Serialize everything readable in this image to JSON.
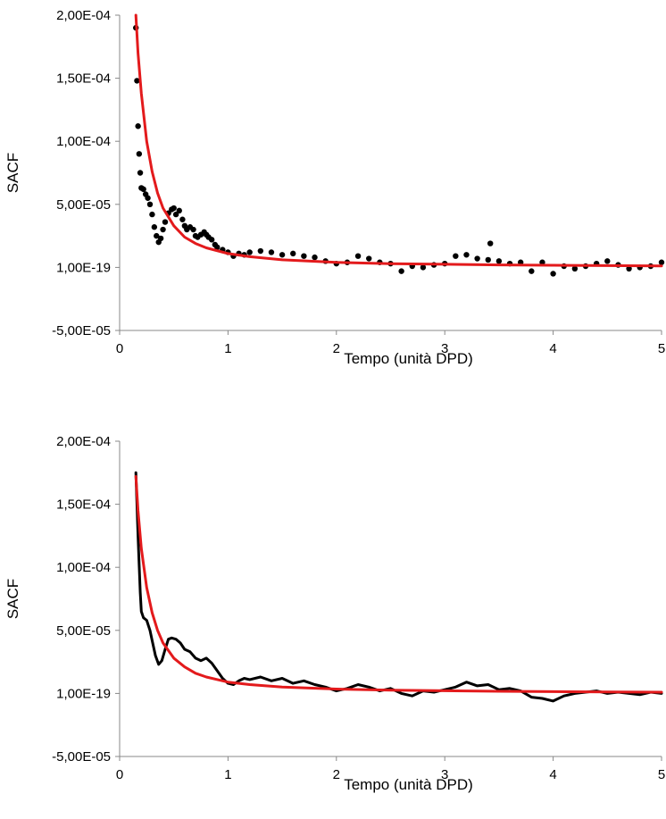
{
  "chart_data": [
    {
      "type": "scatter",
      "title": "",
      "xlabel": "Tempo (unità DPD)",
      "ylabel": "SACF",
      "xlim": [
        0,
        5
      ],
      "ylim": [
        -5e-05,
        0.0002
      ],
      "x_ticks": [
        0,
        1,
        2,
        3,
        4,
        5
      ],
      "x_tick_labels": [
        "0",
        "1",
        "2",
        "3",
        "4",
        "5"
      ],
      "y_ticks": [
        -5e-05,
        0,
        5e-05,
        0.0001,
        0.00015,
        0.0002
      ],
      "y_tick_labels": [
        "-5,00E-05",
        "1,00E-19",
        "5,00E-05",
        "1,00E-04",
        "1,50E-04",
        "2,00E-04"
      ],
      "grid": false,
      "legend": "none",
      "colors": {
        "data": "#000000",
        "fit": "#e31a1c"
      },
      "series": [
        {
          "style": "dots",
          "x": [
            0.15,
            0.16,
            0.17,
            0.18,
            0.19,
            0.2,
            0.22,
            0.24,
            0.26,
            0.28,
            0.3,
            0.32,
            0.34,
            0.36,
            0.38,
            0.4,
            0.42,
            0.45,
            0.48,
            0.5,
            0.52,
            0.55,
            0.58,
            0.6,
            0.62,
            0.65,
            0.68,
            0.7,
            0.72,
            0.75,
            0.78,
            0.8,
            0.82,
            0.85,
            0.88,
            0.9,
            0.95,
            1.0,
            1.05,
            1.1,
            1.15,
            1.2,
            1.3,
            1.4,
            1.5,
            1.6,
            1.7,
            1.8,
            1.9,
            2.0,
            2.1,
            2.2,
            2.3,
            2.4,
            2.5,
            2.6,
            2.7,
            2.8,
            2.9,
            3.0,
            3.1,
            3.2,
            3.3,
            3.4,
            3.42,
            3.5,
            3.6,
            3.7,
            3.8,
            3.9,
            4.0,
            4.1,
            4.2,
            4.3,
            4.4,
            4.5,
            4.6,
            4.7,
            4.8,
            4.9,
            5.0
          ],
          "y": [
            0.00019,
            0.000148,
            0.000112,
            9e-05,
            7.5e-05,
            6.3e-05,
            6.2e-05,
            5.8e-05,
            5.5e-05,
            5e-05,
            4.2e-05,
            3.2e-05,
            2.5e-05,
            2e-05,
            2.3e-05,
            3e-05,
            3.6e-05,
            4.3e-05,
            4.6e-05,
            4.7e-05,
            4.2e-05,
            4.5e-05,
            3.8e-05,
            3.3e-05,
            3e-05,
            3.2e-05,
            3e-05,
            2.5e-05,
            2.4e-05,
            2.6e-05,
            2.8e-05,
            2.6e-05,
            2.4e-05,
            2.2e-05,
            1.8e-05,
            1.6e-05,
            1.4e-05,
            1.2e-05,
            9e-06,
            1.1e-05,
            1e-05,
            1.2e-05,
            1.3e-05,
            1.2e-05,
            1e-05,
            1.1e-05,
            9e-06,
            8e-06,
            5e-06,
            3e-06,
            4e-06,
            9e-06,
            7e-06,
            4e-06,
            3e-06,
            -3e-06,
            1e-06,
            0.0,
            2e-06,
            3e-06,
            9e-06,
            1e-05,
            7e-06,
            6e-06,
            1.9e-05,
            5e-06,
            3e-06,
            4e-06,
            -3e-06,
            4e-06,
            -5e-06,
            1e-06,
            -1e-06,
            1e-06,
            3e-06,
            5e-06,
            2e-06,
            -1e-06,
            0.0,
            1e-06,
            4e-06
          ]
        },
        {
          "style": "fit-line",
          "x": [
            0.15,
            0.17,
            0.2,
            0.25,
            0.3,
            0.35,
            0.4,
            0.5,
            0.6,
            0.7,
            0.8,
            1.0,
            1.2,
            1.5,
            2.0,
            2.5,
            3.0,
            3.5,
            4.0,
            4.5,
            5.0
          ],
          "y": [
            0.0002,
            0.00017,
            0.000138,
            0.0001,
            7.6e-05,
            5.9e-05,
            4.7e-05,
            3.3e-05,
            2.4e-05,
            1.9e-05,
            1.55e-05,
            1.1e-05,
            8.5e-06,
            6e-06,
            4e-06,
            3e-06,
            2.5e-06,
            2e-06,
            1.7e-06,
            1.4e-06,
            1.2e-06
          ]
        }
      ]
    },
    {
      "type": "line",
      "title": "",
      "xlabel": "Tempo (unità DPD)",
      "ylabel": "SACF",
      "xlim": [
        0,
        5
      ],
      "ylim": [
        -5e-05,
        0.0002
      ],
      "x_ticks": [
        0,
        1,
        2,
        3,
        4,
        5
      ],
      "x_tick_labels": [
        "0",
        "1",
        "2",
        "3",
        "4",
        "5"
      ],
      "y_ticks": [
        -5e-05,
        0,
        5e-05,
        0.0001,
        0.00015,
        0.0002
      ],
      "y_tick_labels": [
        "-5,00E-05",
        "1,00E-19",
        "5,00E-05",
        "1,00E-04",
        "1,50E-04",
        "2,00E-04"
      ],
      "grid": false,
      "legend": "none",
      "colors": {
        "data": "#000000",
        "fit": "#e31a1c"
      },
      "series": [
        {
          "style": "line",
          "x": [
            0.15,
            0.17,
            0.19,
            0.2,
            0.22,
            0.25,
            0.28,
            0.3,
            0.33,
            0.36,
            0.39,
            0.42,
            0.45,
            0.48,
            0.52,
            0.56,
            0.6,
            0.65,
            0.7,
            0.75,
            0.8,
            0.85,
            0.9,
            0.95,
            1.0,
            1.05,
            1.1,
            1.15,
            1.2,
            1.3,
            1.4,
            1.5,
            1.6,
            1.7,
            1.8,
            1.9,
            2.0,
            2.1,
            2.2,
            2.3,
            2.4,
            2.5,
            2.6,
            2.7,
            2.8,
            2.9,
            3.0,
            3.1,
            3.2,
            3.3,
            3.4,
            3.5,
            3.6,
            3.7,
            3.8,
            3.9,
            4.0,
            4.1,
            4.2,
            4.3,
            4.4,
            4.5,
            4.6,
            4.7,
            4.8,
            4.9,
            5.0
          ],
          "y": [
            0.000175,
            0.000125,
            8e-05,
            6.5e-05,
            6e-05,
            5.8e-05,
            5e-05,
            4.2e-05,
            3e-05,
            2.3e-05,
            2.6e-05,
            3.5e-05,
            4.3e-05,
            4.4e-05,
            4.3e-05,
            4e-05,
            3.5e-05,
            3.3e-05,
            2.8e-05,
            2.6e-05,
            2.8e-05,
            2.4e-05,
            1.8e-05,
            1.2e-05,
            8e-06,
            7e-06,
            1e-05,
            1.2e-05,
            1.1e-05,
            1.3e-05,
            1e-05,
            1.2e-05,
            8e-06,
            1e-05,
            7e-06,
            5e-06,
            2e-06,
            4e-06,
            7e-06,
            5e-06,
            2e-06,
            4e-06,
            0.0,
            -2e-06,
            2e-06,
            1e-06,
            3e-06,
            5e-06,
            9e-06,
            6e-06,
            7e-06,
            3e-06,
            4e-06,
            2e-06,
            -3e-06,
            -4e-06,
            -6e-06,
            -2e-06,
            0.0,
            1e-06,
            2e-06,
            0.0,
            1e-06,
            0.0,
            -1e-06,
            1e-06,
            0.0
          ]
        },
        {
          "style": "fit-line",
          "x": [
            0.15,
            0.17,
            0.2,
            0.25,
            0.3,
            0.35,
            0.4,
            0.5,
            0.6,
            0.7,
            0.8,
            1.0,
            1.2,
            1.5,
            2.0,
            2.5,
            3.0,
            3.5,
            4.0,
            4.5,
            5.0
          ],
          "y": [
            0.000172,
            0.000145,
            0.000115,
            8.4e-05,
            6.4e-05,
            5e-05,
            4e-05,
            2.8e-05,
            2.1e-05,
            1.6e-05,
            1.3e-05,
            9e-06,
            7e-06,
            5e-06,
            3.5e-06,
            2.6e-06,
            2.1e-06,
            1.7e-06,
            1.4e-06,
            1.2e-06,
            1e-06
          ]
        }
      ]
    }
  ]
}
